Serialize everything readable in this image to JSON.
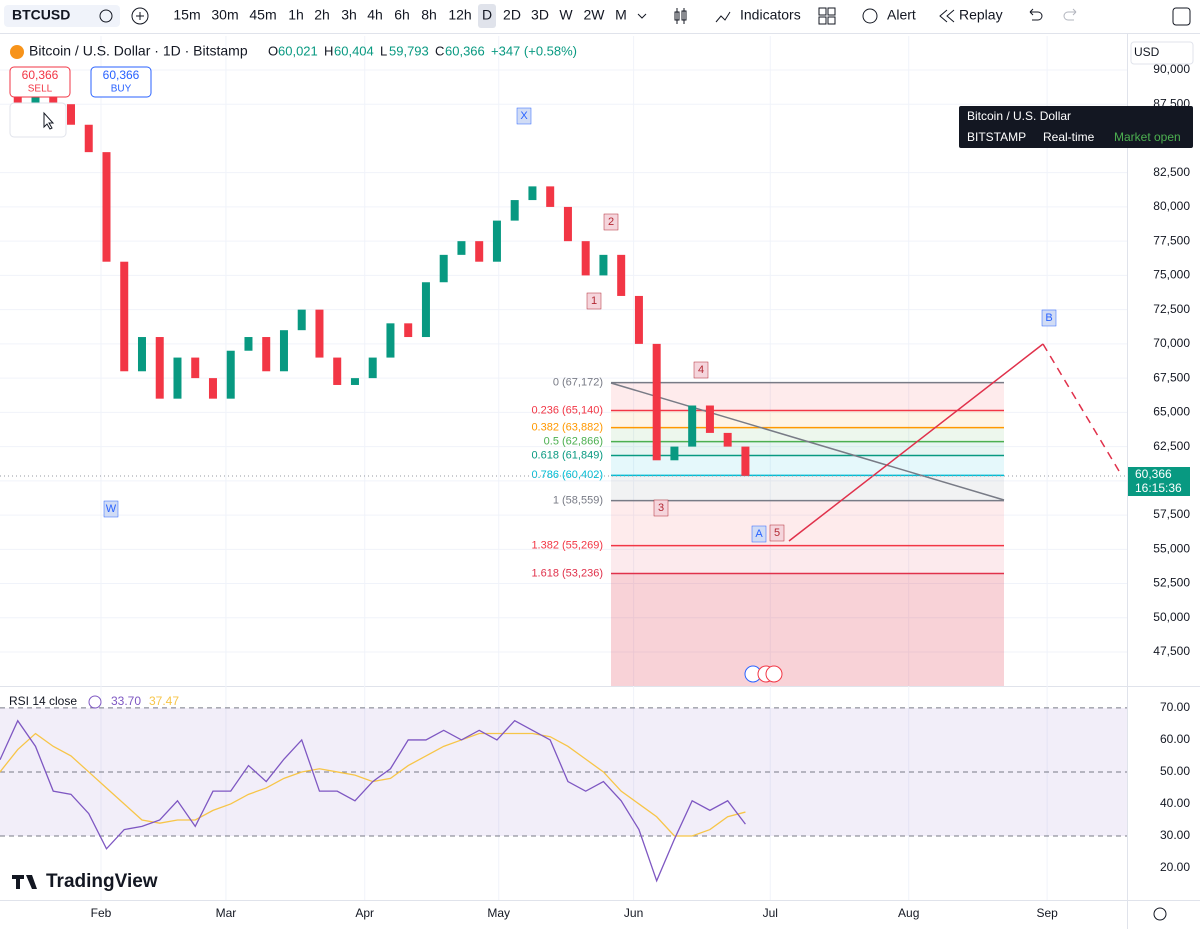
{
  "toolbar": {
    "symbol": "BTCUSD",
    "intervals": [
      "15m",
      "30m",
      "45m",
      "1h",
      "2h",
      "3h",
      "4h",
      "6h",
      "8h",
      "12h",
      "D",
      "2D",
      "3D",
      "W",
      "2W",
      "M"
    ],
    "indicators": "Indicators",
    "alert": "Alert",
    "replay": "Replay"
  },
  "legend": {
    "title": "Bitcoin / U.S. Dollar · 1D · Bitstamp",
    "o_label": "O",
    "o": "60,021",
    "h_label": "H",
    "h": "60,404",
    "l_label": "L",
    "l": "59,793",
    "c_label": "C",
    "c": "60,366",
    "change": "+347 (+0.58%)"
  },
  "trade_buttons": {
    "sell_price": "60,366",
    "sell": "SELL",
    "buy_price": "60,366",
    "buy": "BUY"
  },
  "tooltip": {
    "title": "Bitcoin / U.S. Dollar",
    "exchange": "BITSTAMP",
    "mode": "Real-time",
    "status": "Market open"
  },
  "currency": "USD",
  "price_tag": {
    "price": "60,366",
    "countdown": "16:15:36"
  },
  "wave_labels": [
    "X",
    "2",
    "1",
    "4",
    "3",
    "A",
    "5",
    "B",
    "W"
  ],
  "fib_levels": [
    {
      "label": "0 (67,172)",
      "value": 67172,
      "color": "#787b86"
    },
    {
      "label": "0.236 (65,140)",
      "value": 65140,
      "color": "#f23645"
    },
    {
      "label": "0.382 (63,882)",
      "value": 63882,
      "color": "#ff9800"
    },
    {
      "label": "0.5 (62,866)",
      "value": 62866,
      "color": "#4caf50"
    },
    {
      "label": "0.618 (61,849)",
      "value": 61849,
      "color": "#089981"
    },
    {
      "label": "0.786 (60,402)",
      "value": 60402,
      "color": "#00bcd4"
    },
    {
      "label": "1 (58,559)",
      "value": 58559,
      "color": "#787b86"
    },
    {
      "label": "1.382 (55,269)",
      "value": 55269,
      "color": "#f23645"
    },
    {
      "label": "1.618 (53,236)",
      "value": 53236,
      "color": "#e0314b"
    }
  ],
  "rsi_legend": {
    "name": "RSI 14 close",
    "rsi": "33.70",
    "ma": "37.47"
  },
  "logo": "TradingView",
  "chart_data": [
    {
      "type": "candle-close",
      "up_color": "#089981",
      "down_color": "#f23645",
      "values": [
        88500,
        87000,
        89000,
        87500,
        86000,
        84000,
        76000,
        68000,
        70500,
        66000,
        69000,
        67500,
        66000,
        69500,
        70500,
        68000,
        71000,
        72500,
        69000,
        67000,
        67500,
        69000,
        71500,
        70500,
        74500,
        76500,
        77500,
        76000,
        79000,
        80500,
        81500,
        80000,
        77500,
        75000,
        76500,
        73500,
        70000,
        61500,
        62500,
        65500,
        63500,
        62500,
        60366
      ],
      "xlim": [
        0,
        63.5
      ],
      "ylim": [
        45020,
        92480
      ],
      "xticks": [
        {
          "value": 5.69,
          "label": "Feb"
        },
        {
          "value": 12.73,
          "label": "Mar"
        },
        {
          "value": 20.55,
          "label": "Apr"
        },
        {
          "value": 28.1,
          "label": "May"
        },
        {
          "value": 35.7,
          "label": "Jun"
        },
        {
          "value": 43.4,
          "label": "Jul"
        },
        {
          "value": 51.2,
          "label": "Aug"
        },
        {
          "value": 59.0,
          "label": "Sep"
        }
      ],
      "yticks": [
        {
          "value": 90000,
          "label": "90,000"
        },
        {
          "value": 87500,
          "label": "87,500"
        },
        {
          "value": 82500,
          "label": "82,500"
        },
        {
          "value": 80000,
          "label": "80,000"
        },
        {
          "value": 77500,
          "label": "77,500"
        },
        {
          "value": 75000,
          "label": "75,000"
        },
        {
          "value": 72500,
          "label": "72,500"
        },
        {
          "value": 70000,
          "label": "70,000"
        },
        {
          "value": 67500,
          "label": "67,500"
        },
        {
          "value": 65000,
          "label": "65,000"
        },
        {
          "value": 62500,
          "label": "62,500"
        },
        {
          "value": 60000,
          "label": "60,000"
        },
        {
          "value": 57500,
          "label": "57,500"
        },
        {
          "value": 55000,
          "label": "55,000"
        },
        {
          "value": 52500,
          "label": "52,500"
        },
        {
          "value": 50000,
          "label": "50,000"
        },
        {
          "value": 47500,
          "label": "47,500"
        }
      ],
      "grid": true
    },
    {
      "type": "line",
      "series": [
        {
          "name": "RSI",
          "color": "#7e57c2",
          "values": [
            53.8,
            66,
            58,
            44,
            43,
            37,
            26,
            32,
            33,
            35,
            41,
            33,
            44,
            44,
            52,
            47,
            54,
            60,
            44,
            44,
            41,
            47,
            51,
            60,
            60,
            63,
            60,
            63,
            60,
            66,
            63,
            60,
            47,
            44,
            47,
            41,
            32,
            16,
            29,
            41,
            38,
            41,
            33.7
          ]
        },
        {
          "name": "MA",
          "color": "#f7c548",
          "values": [
            50,
            57,
            62,
            58,
            55,
            50,
            45,
            40,
            35,
            34,
            35,
            35,
            38,
            40,
            43,
            45,
            48,
            50,
            51,
            50,
            49,
            47,
            48,
            52,
            55,
            58,
            60,
            62,
            62,
            62,
            62,
            61,
            58,
            54,
            50,
            44,
            40,
            36,
            30,
            30,
            32,
            36,
            37.47
          ]
        }
      ],
      "xlim": [
        0,
        63.5
      ],
      "ylim": [
        10,
        75.6
      ],
      "yticks": [
        {
          "value": 70,
          "label": "70.00"
        },
        {
          "value": 60,
          "label": "60.00"
        },
        {
          "value": 50,
          "label": "50.00"
        },
        {
          "value": 40,
          "label": "40.00"
        },
        {
          "value": 30,
          "label": "30.00"
        },
        {
          "value": 20,
          "label": "20.00"
        }
      ],
      "bands": [
        70,
        50,
        30
      ]
    }
  ]
}
